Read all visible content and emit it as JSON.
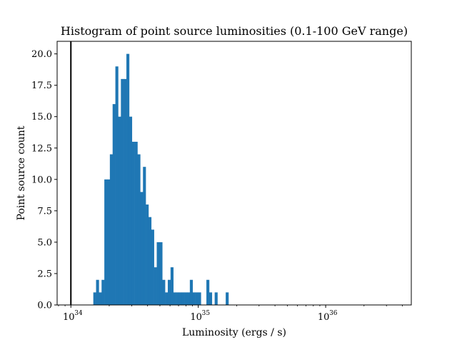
{
  "chart_data": {
    "type": "bar",
    "title": "Histogram of point source luminosities (0.1-100 GeV range)",
    "xlabel": "Luminosity (ergs / s)",
    "ylabel": "Point source count",
    "x_scale": "log",
    "xlim": [
      7.8e+33,
      4.7e+36
    ],
    "ylim": [
      0,
      21
    ],
    "x_ticks": [
      {
        "base": "10",
        "exp": "34",
        "value": 1e+34
      },
      {
        "base": "10",
        "exp": "35",
        "value": 1e+35
      },
      {
        "base": "10",
        "exp": "36",
        "value": 1e+36
      }
    ],
    "y_ticks": [
      "0.0",
      "2.5",
      "5.0",
      "7.5",
      "10.0",
      "12.5",
      "15.0",
      "17.5",
      "20.0"
    ],
    "bar_color": "#1f77b4",
    "reference_line": {
      "x": 1e+34,
      "color": "#000000"
    },
    "bins": {
      "first_left_edge": 1.5e+34,
      "log10_width": 0.02165,
      "count": 49
    },
    "values": [
      1,
      2,
      1,
      2,
      10,
      10,
      12,
      16,
      19,
      15,
      18,
      18,
      20,
      15,
      13,
      13,
      12,
      9,
      11,
      8,
      7,
      6,
      3,
      5,
      5,
      2,
      1,
      2,
      3,
      1,
      1,
      1,
      1,
      1,
      1,
      2,
      1,
      1,
      1,
      0,
      0,
      2,
      1,
      0,
      1,
      0,
      0,
      0,
      1
    ],
    "grid": false,
    "legend": "none"
  }
}
